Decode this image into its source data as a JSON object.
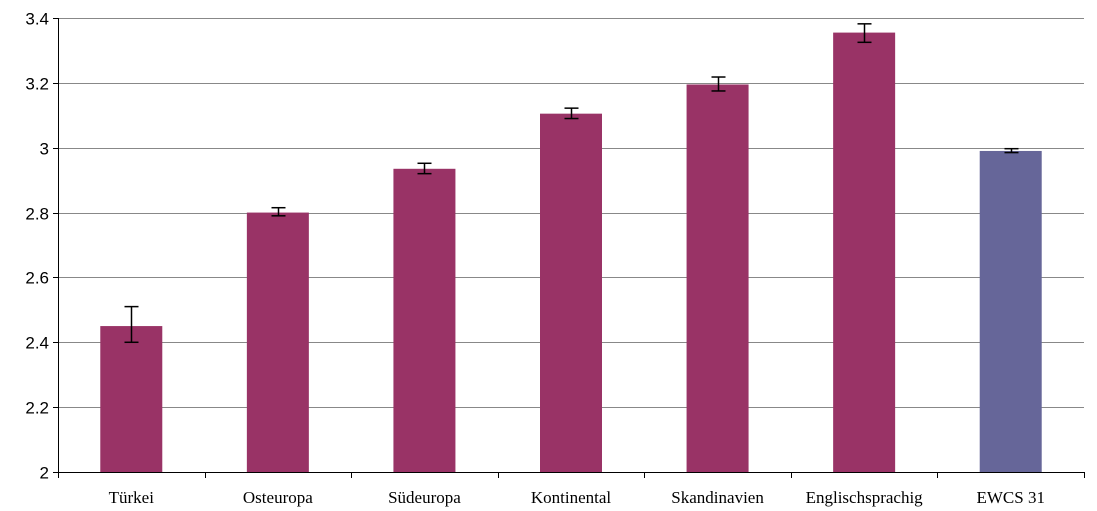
{
  "chart_data": {
    "type": "bar",
    "title": "",
    "xlabel": "",
    "ylabel": "",
    "ylim": [
      2,
      3.4
    ],
    "yticks": [
      2,
      2.2,
      2.4,
      2.6,
      2.8,
      3,
      3.2,
      3.4
    ],
    "ytick_labels": [
      "2",
      "2.2",
      "2.4",
      "2.6",
      "2.8",
      "3",
      "3.2",
      "3.4"
    ],
    "grid": true,
    "categories": [
      "Türkei",
      "Osteuropa",
      "Südeuropa",
      "Kontinental",
      "Skandinavien",
      "Englischsprachig",
      "EWCS 31"
    ],
    "values": [
      2.45,
      2.8,
      2.935,
      3.105,
      3.195,
      3.355,
      2.99
    ],
    "error_low": [
      2.4,
      2.79,
      2.92,
      3.09,
      3.175,
      3.325,
      2.985
    ],
    "error_high": [
      2.51,
      2.815,
      2.952,
      3.122,
      3.218,
      3.382,
      2.997
    ],
    "bar_colors": [
      "#993366",
      "#993366",
      "#993366",
      "#993366",
      "#993366",
      "#993366",
      "#666699"
    ]
  }
}
